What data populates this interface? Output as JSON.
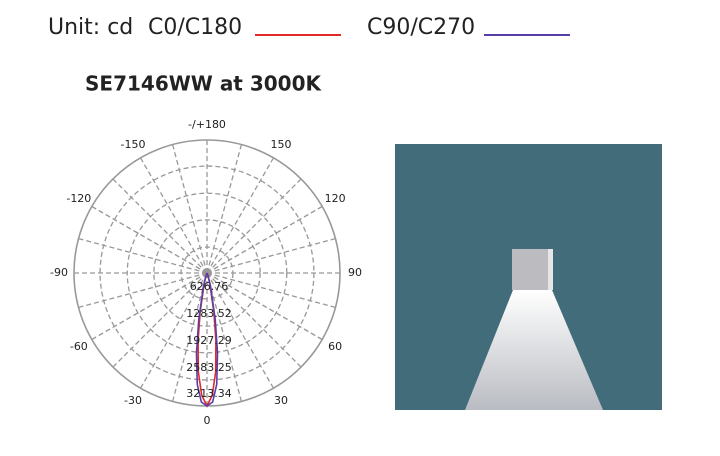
{
  "chart_data": {
    "type": "polar",
    "unit_label": "Unit: cd",
    "title": "SE7146WW at 3000K",
    "x": [
      -90,
      -30,
      -20,
      -15,
      -10,
      -7.5,
      -5,
      -2.5,
      0,
      2.5,
      5,
      7.5,
      10,
      15,
      20,
      30,
      90
    ],
    "series": [
      {
        "name": "C0/C180",
        "color": "#e02a2a",
        "values": [
          0,
          0,
          60,
          250,
          950,
          1650,
          2400,
          2950,
          3213,
          2950,
          2400,
          1650,
          950,
          250,
          60,
          0,
          0
        ]
      },
      {
        "name": "C90/C270",
        "color": "#5a3ea8",
        "values": [
          0,
          0,
          80,
          330,
          1150,
          1950,
          2700,
          3120,
          3213,
          3120,
          2700,
          1950,
          1150,
          330,
          80,
          0,
          0
        ]
      }
    ],
    "rlim": [
      0,
      3213.34
    ],
    "rticks": [
      626.76,
      1283.52,
      1927.29,
      2583.25,
      3213.34
    ],
    "angle_ticks": [
      {
        "value": 180,
        "label": "-/+180"
      },
      -150,
      150,
      -120,
      120,
      -90,
      90,
      -60,
      60,
      -30,
      30,
      0
    ]
  }
}
